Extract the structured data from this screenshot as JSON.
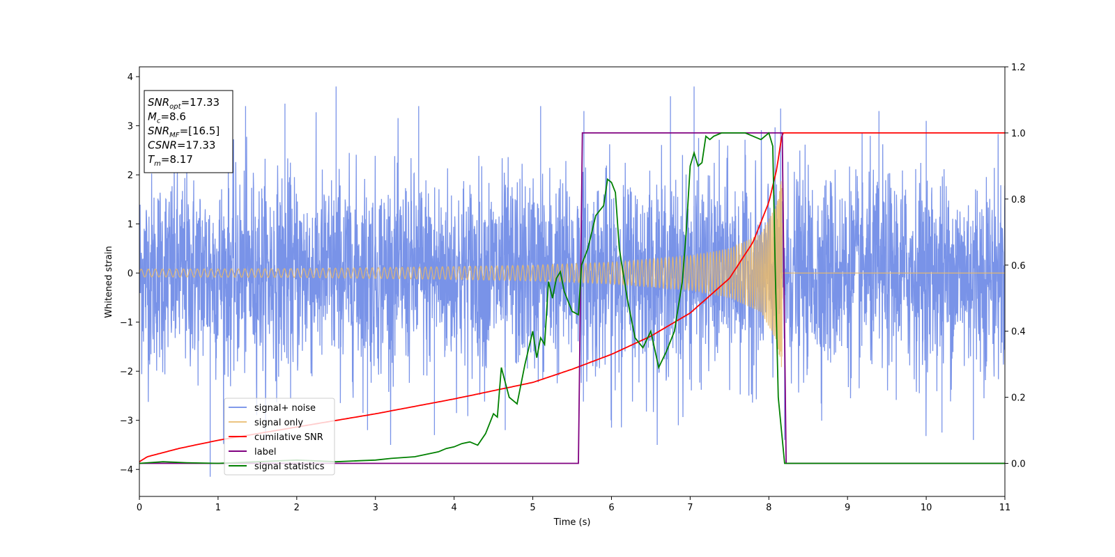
{
  "chart_data": {
    "type": "line",
    "title": "",
    "xlabel": "Time (s)",
    "ylabel": "Whitened strain",
    "y2label": "",
    "xlim": [
      0,
      11
    ],
    "ylim": [
      -4.55,
      4.2
    ],
    "y2lim": [
      -0.1,
      1.2
    ],
    "x_ticks": [
      0,
      1,
      2,
      3,
      4,
      5,
      6,
      7,
      8,
      9,
      10,
      11
    ],
    "y_ticks": [
      -4,
      -3,
      -2,
      -1,
      0,
      1,
      2,
      3,
      4
    ],
    "y_tick_labels": [
      "−4",
      "−3",
      "−2",
      "−1",
      "0",
      "1",
      "2",
      "3",
      "4"
    ],
    "y2_ticks": [
      0.0,
      0.2,
      0.4,
      0.6,
      0.8,
      1.0,
      1.2
    ],
    "y2_tick_labels": [
      "0.0",
      "0.2",
      "0.4",
      "0.6",
      "0.8",
      "1.0",
      "1.2"
    ],
    "grid": false,
    "legend_position": "lower-left",
    "series": [
      {
        "name": "signal+ noise",
        "axis": "left",
        "color": "#6a87e6",
        "kind": "noise",
        "envelope_sigma": 1.0,
        "peak_samples": [
          [
            0.9,
            -4.15
          ],
          [
            1.35,
            3.4
          ],
          [
            1.85,
            3.45
          ],
          [
            2.5,
            3.8
          ],
          [
            2.9,
            -3.2
          ],
          [
            3.55,
            3.4
          ],
          [
            3.75,
            -3.3
          ],
          [
            4.65,
            -3.2
          ],
          [
            5.1,
            3.4
          ],
          [
            5.65,
            3.3
          ],
          [
            6.0,
            -3.15
          ],
          [
            6.75,
            3.6
          ],
          [
            6.85,
            -3.1
          ],
          [
            7.05,
            3.8
          ],
          [
            8.15,
            3.35
          ],
          [
            8.2,
            -3.4
          ],
          [
            9.4,
            3.3
          ],
          [
            10.0,
            3.1
          ],
          [
            10.2,
            -3.25
          ],
          [
            10.6,
            -3.4
          ]
        ]
      },
      {
        "name": "signal only",
        "axis": "left",
        "color": "#e8b96a",
        "kind": "chirp",
        "amplitude_at": [
          [
            0,
            0.08
          ],
          [
            2,
            0.09
          ],
          [
            4,
            0.13
          ],
          [
            5,
            0.16
          ],
          [
            6,
            0.22
          ],
          [
            7,
            0.35
          ],
          [
            7.5,
            0.5
          ],
          [
            7.9,
            0.8
          ],
          [
            8.1,
            1.4
          ],
          [
            8.17,
            2.0
          ]
        ],
        "merger_time": 8.17,
        "after_merger_value": 0
      },
      {
        "name": "cumilative SNR",
        "axis": "right",
        "color": "#ff0000",
        "x": [
          0,
          0.1,
          0.5,
          1,
          2,
          3,
          4,
          5,
          5.5,
          6,
          6.5,
          7,
          7.5,
          7.8,
          8.0,
          8.1,
          8.17,
          11
        ],
        "y": [
          0.005,
          0.02,
          0.045,
          0.07,
          0.11,
          0.15,
          0.195,
          0.245,
          0.285,
          0.33,
          0.385,
          0.455,
          0.56,
          0.67,
          0.79,
          0.89,
          1.0,
          1.0
        ]
      },
      {
        "name": "label",
        "axis": "right",
        "color": "#800080",
        "x": [
          0,
          5.58,
          5.63,
          8.17,
          8.22,
          11
        ],
        "y": [
          0,
          0,
          1,
          1,
          0,
          0
        ]
      },
      {
        "name": "signal statistics",
        "axis": "right",
        "color": "#008000",
        "x": [
          0,
          0.3,
          0.6,
          1.0,
          1.5,
          2.0,
          2.5,
          2.8,
          3.0,
          3.2,
          3.5,
          3.7,
          3.8,
          3.9,
          4.0,
          4.1,
          4.2,
          4.3,
          4.4,
          4.5,
          4.55,
          4.6,
          4.7,
          4.8,
          4.9,
          5.0,
          5.05,
          5.1,
          5.15,
          5.2,
          5.25,
          5.3,
          5.35,
          5.4,
          5.5,
          5.58,
          5.62,
          5.7,
          5.8,
          5.9,
          5.95,
          6.0,
          6.05,
          6.1,
          6.2,
          6.3,
          6.4,
          6.5,
          6.6,
          6.7,
          6.8,
          6.9,
          6.95,
          7.0,
          7.05,
          7.1,
          7.15,
          7.2,
          7.25,
          7.3,
          7.4,
          7.5,
          7.6,
          7.7,
          7.8,
          7.9,
          8.0,
          8.05,
          8.08,
          8.12,
          8.2,
          8.25,
          8.4,
          11
        ],
        "y": [
          0.0,
          0.005,
          0.002,
          0.0,
          0.005,
          0.01,
          0.005,
          0.008,
          0.01,
          0.015,
          0.02,
          0.03,
          0.035,
          0.045,
          0.05,
          0.06,
          0.065,
          0.055,
          0.09,
          0.15,
          0.14,
          0.29,
          0.2,
          0.18,
          0.3,
          0.4,
          0.32,
          0.38,
          0.36,
          0.55,
          0.5,
          0.56,
          0.58,
          0.52,
          0.46,
          0.45,
          0.6,
          0.65,
          0.75,
          0.78,
          0.86,
          0.85,
          0.82,
          0.65,
          0.5,
          0.38,
          0.35,
          0.4,
          0.29,
          0.34,
          0.4,
          0.55,
          0.7,
          0.9,
          0.94,
          0.9,
          0.91,
          0.99,
          0.98,
          0.99,
          1.0,
          1.0,
          1.0,
          1.0,
          0.99,
          0.98,
          1.0,
          0.96,
          0.6,
          0.2,
          0.0,
          0.0,
          0.0,
          0.0
        ]
      }
    ],
    "info_box": {
      "lines": [
        {
          "sym": "SNR",
          "sub": "opt",
          "val": "=17.33"
        },
        {
          "sym": "M",
          "sub": "c",
          "val": "=8.6"
        },
        {
          "sym": "SNR",
          "sub": "MF",
          "val": "=[16.5]"
        },
        {
          "sym": "CSNR",
          "sub": "",
          "val": "=17.33"
        },
        {
          "sym": "T",
          "sub": "m",
          "val": "=8.17"
        }
      ]
    }
  }
}
